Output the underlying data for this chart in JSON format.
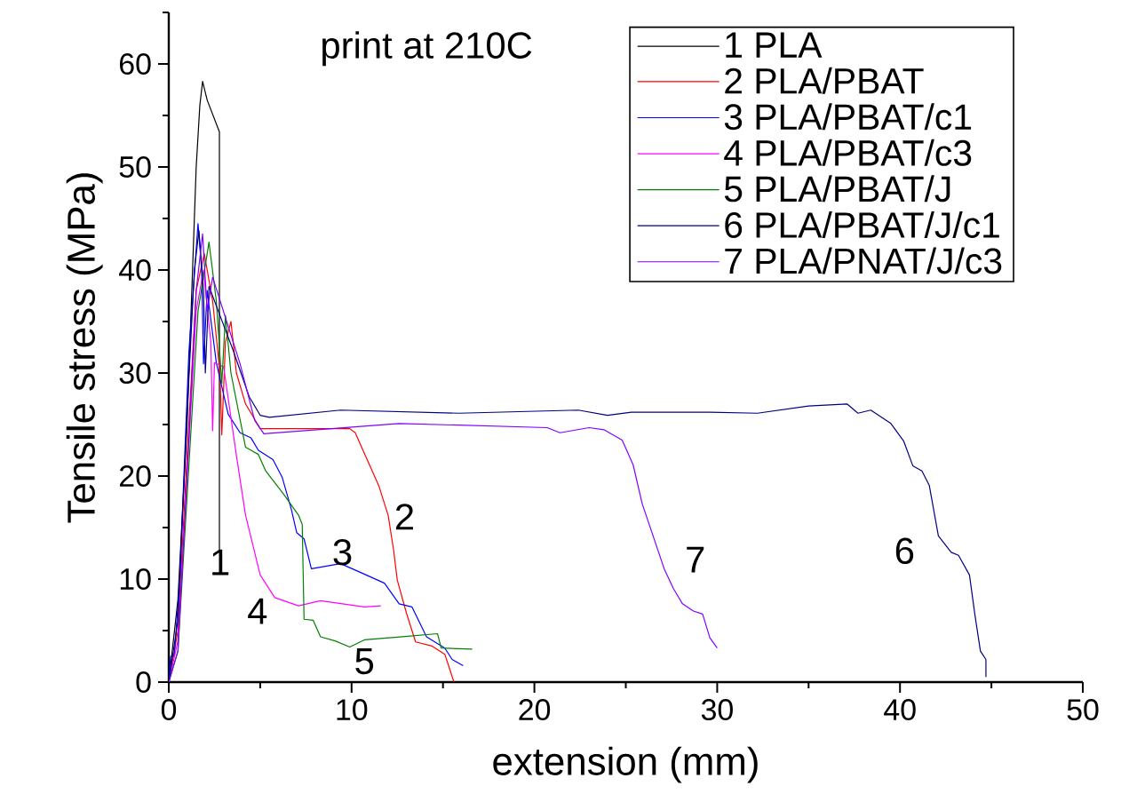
{
  "chart_data": {
    "type": "line",
    "xlabel": "extension (mm)",
    "ylabel": "Tensile stress (MPa)",
    "xlim": [
      0,
      50
    ],
    "ylim": [
      0,
      65
    ],
    "xticks": [
      0,
      {
        "value": 5,
        "label": null
      },
      10,
      {
        "value": 15,
        "label": null
      },
      20,
      {
        "value": 25,
        "label": null
      },
      30,
      {
        "value": 35,
        "label": null
      },
      40,
      {
        "value": 45,
        "label": null
      },
      50
    ],
    "yticks": [
      0,
      {
        "value": 5,
        "label": null
      },
      10,
      {
        "value": 15,
        "label": null
      },
      20,
      {
        "value": 25,
        "label": null
      },
      30,
      {
        "value": 35,
        "label": null
      },
      40,
      {
        "value": 45,
        "label": null
      },
      50,
      {
        "value": 55,
        "label": null
      },
      60,
      {
        "value": 65,
        "label": null
      }
    ],
    "legend": "top right",
    "grid": false,
    "marker": "none",
    "line_style": "solid",
    "series": [
      {
        "name": "1 PLA",
        "color": "#000000",
        "x": [
          0,
          0.5,
          1.0,
          1.5,
          1.7,
          1.85,
          2.1,
          2.77,
          2.77
        ],
        "values": [
          0,
          8,
          25,
          50,
          56,
          58.3,
          56.5,
          53.4,
          12.8
        ]
      },
      {
        "name": "2 PLA/PBAT",
        "color": "#ff0000",
        "x": [
          0,
          0.5,
          1.0,
          1.5,
          1.94,
          2.4,
          2.8,
          2.9,
          3.1,
          3.4,
          3.7,
          4.2,
          5.0,
          9.9,
          10.2,
          11.5,
          12.0,
          12.3,
          12.5,
          13.0,
          13.5,
          14.4,
          15.1,
          15.6
        ],
        "values": [
          0,
          5,
          22,
          38,
          41.6,
          37,
          30,
          24,
          33,
          35,
          30,
          27,
          24.6,
          24.6,
          24.2,
          19.0,
          16.2,
          12.8,
          9.9,
          6.7,
          3.9,
          3.5,
          2.7,
          0
        ]
      },
      {
        "name": "3 PLA/PBAT/c1",
        "color": "#0000ff",
        "x": [
          0,
          0.1,
          0.3,
          0.6,
          1.1,
          1.6,
          1.8,
          1.9,
          2.1,
          2.6,
          3.25,
          3.9,
          4.5,
          4.9,
          5.7,
          6.2,
          6.7,
          7.0,
          7.4,
          7.8,
          9.4,
          10.8,
          11.8,
          12.6,
          13.3,
          14.1,
          15.1,
          15.5,
          16.1
        ],
        "values": [
          0,
          2.5,
          2.5,
          10,
          32,
          44.5,
          40,
          30.9,
          38,
          31,
          26,
          24.2,
          23.7,
          22.5,
          21.6,
          19.9,
          16.8,
          14.5,
          13.9,
          11.0,
          11.5,
          10.4,
          9.6,
          7.6,
          7.3,
          4.4,
          3.3,
          2.2,
          1.6
        ]
      },
      {
        "name": "4 PLA/PBAT/c3",
        "color": "#ff00ff",
        "x": [
          0,
          0.5,
          1.0,
          1.5,
          1.9,
          2.3,
          2.4,
          2.5,
          3.0,
          3.7,
          4.2,
          5.0,
          5.8,
          7.1,
          8.3,
          10.7,
          11.6
        ],
        "values": [
          0,
          4,
          20,
          36,
          40,
          33,
          24.4,
          31,
          30.6,
          22,
          16.2,
          10.4,
          8.2,
          7.4,
          7.9,
          7.3,
          7.4
        ]
      },
      {
        "name": "5 PLA/PBAT/J",
        "color": "#008000",
        "x": [
          0,
          0.5,
          1.0,
          1.6,
          2.2,
          2.6,
          2.9,
          3.1,
          3.4,
          4.2,
          4.9,
          5.3,
          6.3,
          7.1,
          7.3,
          7.4,
          7.9,
          8.3,
          9.1,
          9.9,
          10.7,
          12.8,
          14.7,
          14.9,
          16.6
        ],
        "values": [
          0,
          3,
          18,
          36,
          42.7,
          37,
          29,
          35.6,
          30,
          22.8,
          22.1,
          20.5,
          18.2,
          16.2,
          15.3,
          6.1,
          6.0,
          4.4,
          4.0,
          3.4,
          4.1,
          4.4,
          4.7,
          3.3,
          3.2
        ]
      },
      {
        "name": "6 PLA/PBAT/J/c1",
        "color": "#000080",
        "x": [
          0,
          0.5,
          1.0,
          1.4,
          1.65,
          1.9,
          2.0,
          2.2,
          3.5,
          4.4,
          5.0,
          5.5,
          9.4,
          15.9,
          22.4,
          24.0,
          25.3,
          29.6,
          32.2,
          35.0,
          37.1,
          37.7,
          38.4,
          39.5,
          40.2,
          40.7,
          41.2,
          41.6,
          42.1,
          42.8,
          43.2,
          43.8,
          44.1,
          44.4,
          44.7,
          44.7
        ],
        "values": [
          0,
          6,
          26,
          40,
          43.8,
          38,
          30,
          38.4,
          32.3,
          27.7,
          25.9,
          25.7,
          26.4,
          26.1,
          26.4,
          25.9,
          26.2,
          26.2,
          26.1,
          26.8,
          27.0,
          26.1,
          26.4,
          25.1,
          23.4,
          21.0,
          20.5,
          19.1,
          14.2,
          12.6,
          12.3,
          10.4,
          6.5,
          3.0,
          2.2,
          0.5
        ]
      },
      {
        "name": "7 PLA/PNAT/J/c3",
        "color": "#8000ff",
        "x": [
          0,
          0.5,
          1.0,
          1.5,
          1.85,
          2.1,
          2.4,
          3.9,
          4.7,
          5.2,
          12.6,
          20.7,
          21.4,
          23.0,
          23.8,
          24.8,
          25.4,
          25.9,
          26.3,
          27.1,
          27.6,
          28.1,
          28.7,
          29.2,
          29.6,
          30.0
        ],
        "values": [
          0,
          3,
          20,
          38,
          43.5,
          36,
          39.3,
          30.9,
          25.4,
          24.1,
          25.1,
          24.7,
          24.2,
          24.7,
          24.5,
          23.5,
          21.1,
          17.3,
          15.2,
          11.0,
          9.1,
          7.6,
          6.9,
          6.6,
          4.3,
          3.3
        ]
      }
    ],
    "annotations": [
      "print at 210C",
      "1",
      "2",
      "3",
      "4",
      "5",
      "6",
      "7"
    ]
  }
}
